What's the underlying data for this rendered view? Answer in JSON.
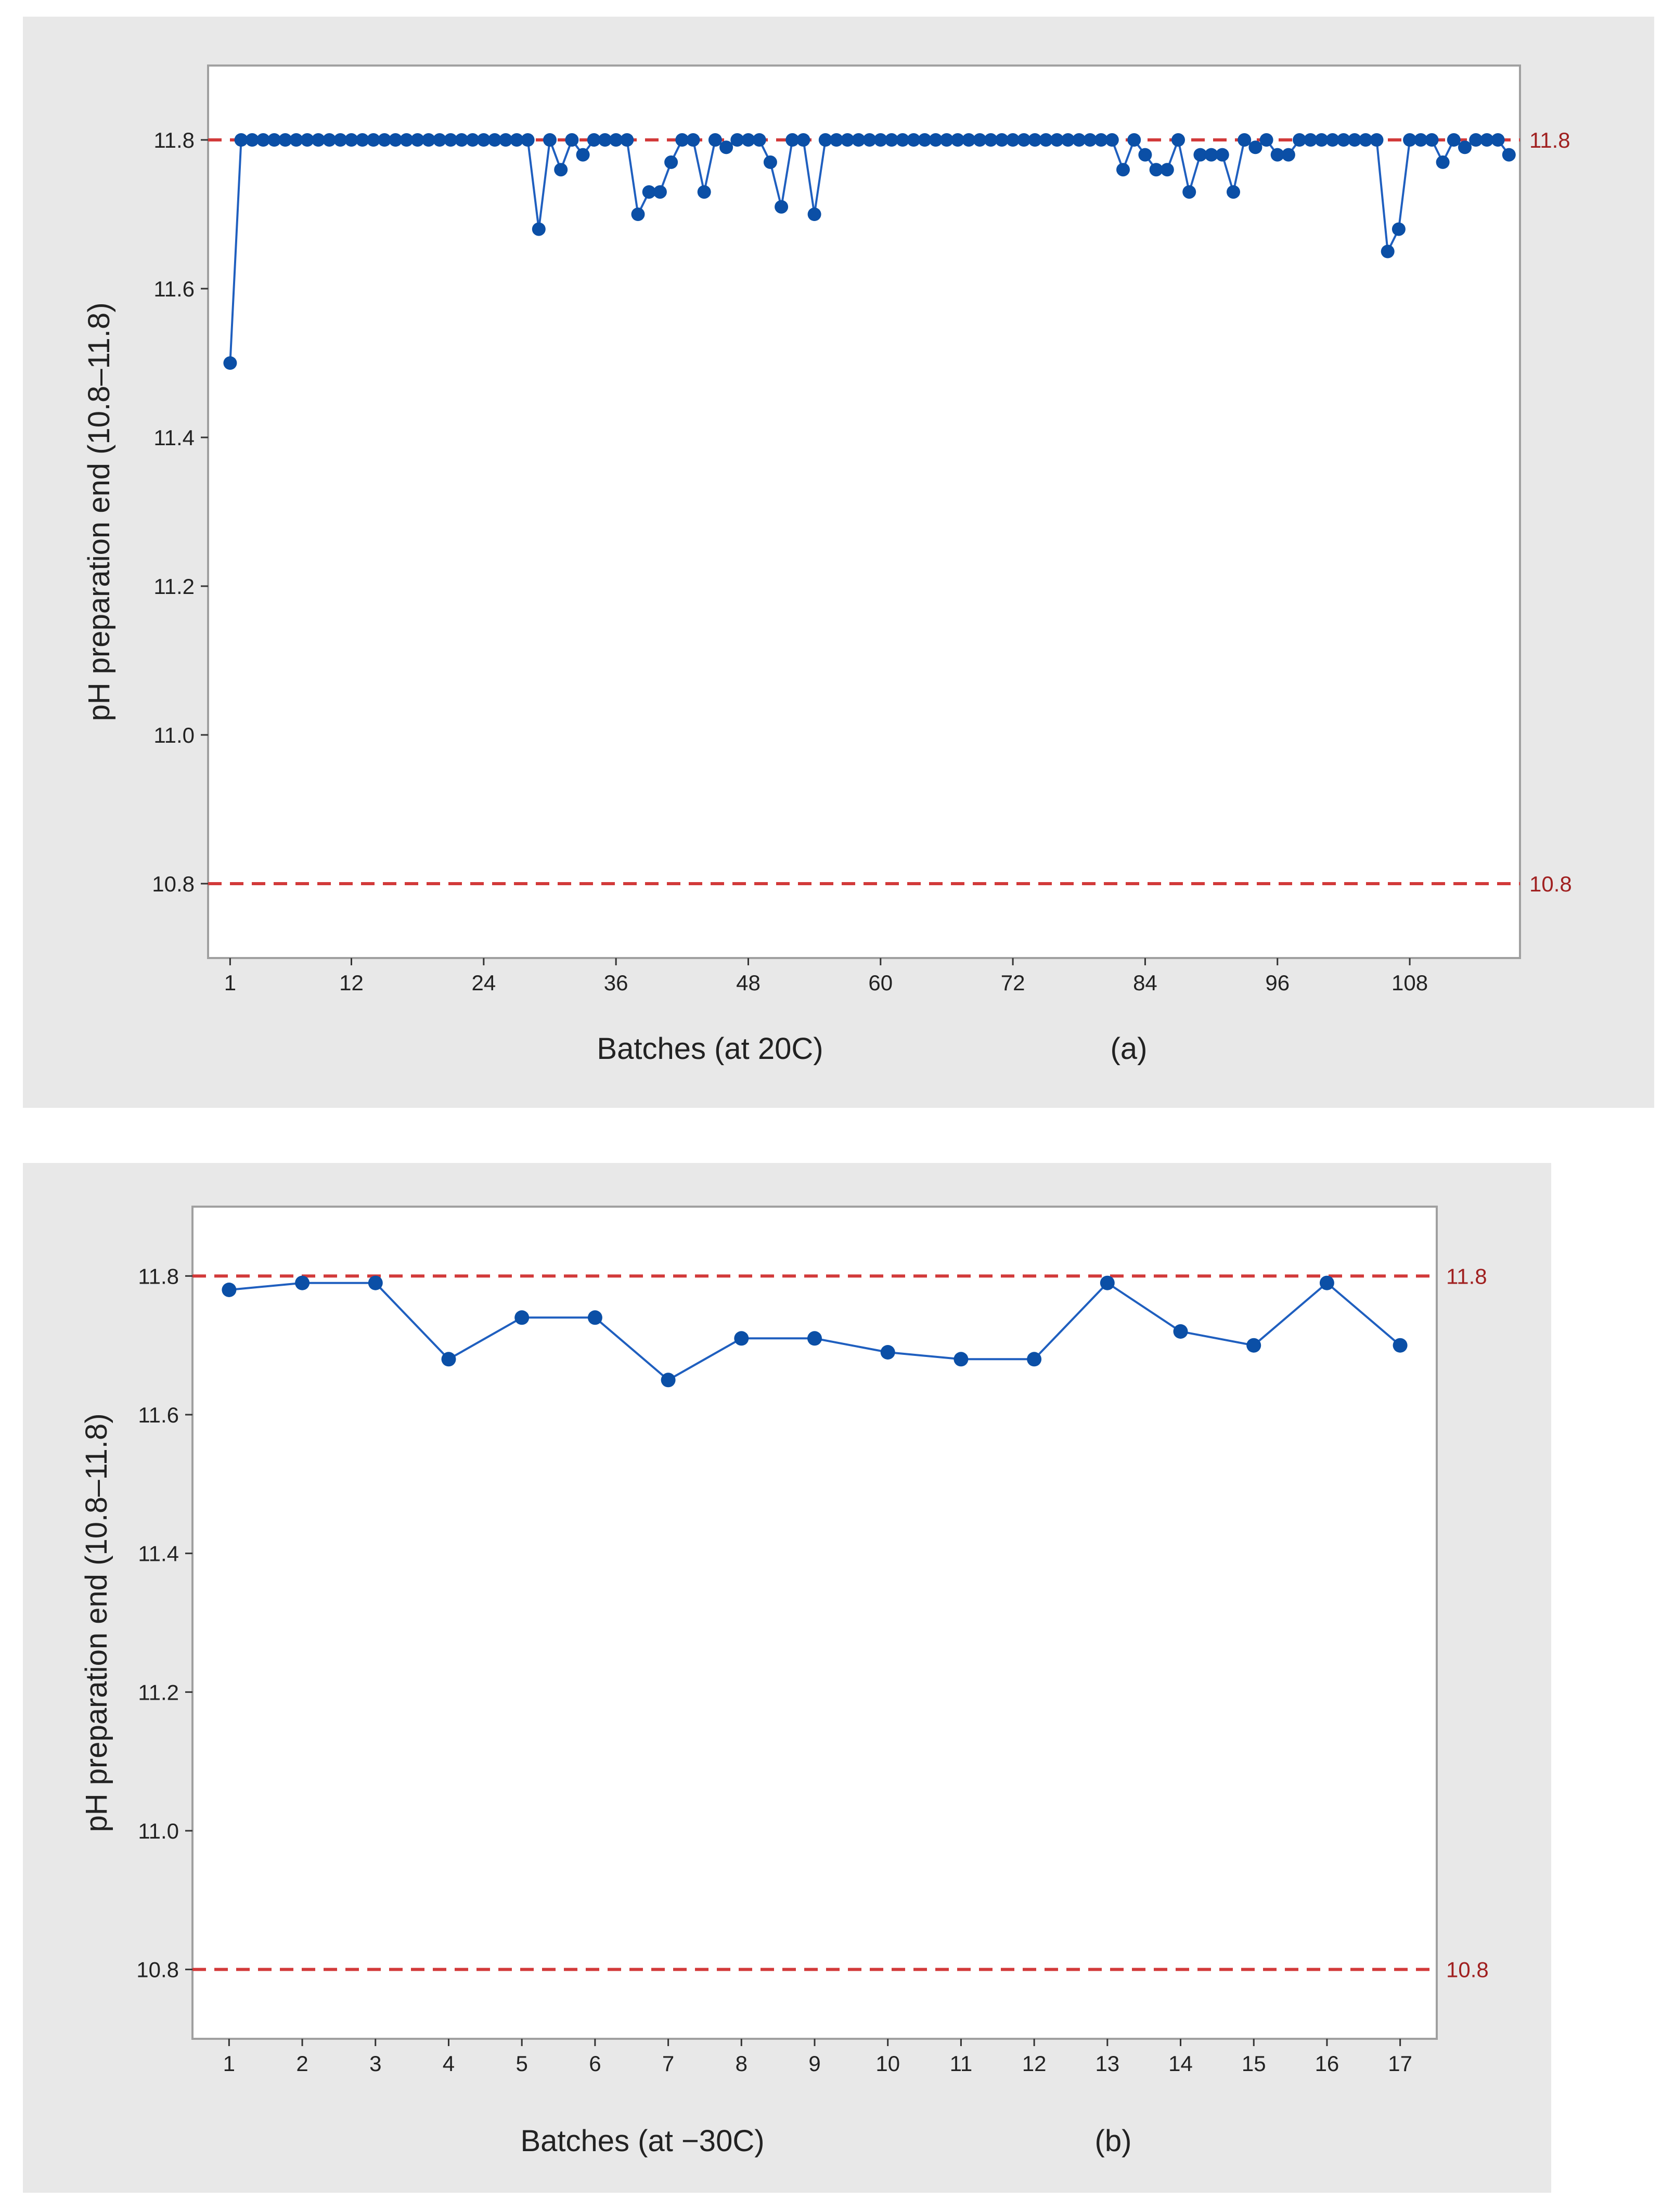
{
  "colors": {
    "panel": "#e8e8e8",
    "plot": "#ffffff",
    "series": "#1f5fbf",
    "marker": "#0b4fa6",
    "limit": "#d23a3a",
    "limit_text": "#a02020",
    "text": "#222222"
  },
  "chart_data": [
    {
      "type": "line",
      "ylabel": "pH preparation end (10.8–11.8)",
      "xlabel": "Batches (at 20C)",
      "panel_label": "(a)",
      "ylim": [
        10.7,
        11.9
      ],
      "yticks": [
        10.8,
        11.0,
        11.2,
        11.4,
        11.6,
        11.8
      ],
      "xlim": [
        -1,
        118
      ],
      "xticks": [
        1,
        12,
        24,
        36,
        48,
        60,
        72,
        84,
        96,
        108
      ],
      "limits": [
        {
          "value": 11.8,
          "label": "11.8"
        },
        {
          "value": 10.8,
          "label": "10.8"
        }
      ],
      "x_start": 1,
      "values": [
        11.5,
        11.8,
        11.8,
        11.8,
        11.8,
        11.8,
        11.8,
        11.8,
        11.8,
        11.8,
        11.8,
        11.8,
        11.8,
        11.8,
        11.8,
        11.8,
        11.8,
        11.8,
        11.8,
        11.8,
        11.8,
        11.8,
        11.8,
        11.8,
        11.8,
        11.8,
        11.8,
        11.8,
        11.68,
        11.8,
        11.76,
        11.8,
        11.78,
        11.8,
        11.8,
        11.8,
        11.8,
        11.7,
        11.73,
        11.73,
        11.77,
        11.8,
        11.8,
        11.73,
        11.8,
        11.79,
        11.8,
        11.8,
        11.8,
        11.77,
        11.71,
        11.8,
        11.8,
        11.7,
        11.8,
        11.8,
        11.8,
        11.8,
        11.8,
        11.8,
        11.8,
        11.8,
        11.8,
        11.8,
        11.8,
        11.8,
        11.8,
        11.8,
        11.8,
        11.8,
        11.8,
        11.8,
        11.8,
        11.8,
        11.8,
        11.8,
        11.8,
        11.8,
        11.8,
        11.8,
        11.8,
        11.76,
        11.8,
        11.78,
        11.76,
        11.76,
        11.8,
        11.73,
        11.78,
        11.78,
        11.78,
        11.73,
        11.8,
        11.79,
        11.8,
        11.78,
        11.78,
        11.8,
        11.8,
        11.8,
        11.8,
        11.8,
        11.8,
        11.8,
        11.8,
        11.65,
        11.68,
        11.8,
        11.8,
        11.8,
        11.77,
        11.8,
        11.79,
        11.8,
        11.8,
        11.8,
        11.78
      ]
    },
    {
      "type": "line",
      "ylabel": "pH preparation end (10.8–11.8)",
      "xlabel": "Batches (at −30C)",
      "panel_label": "(b)",
      "ylim": [
        10.7,
        11.9
      ],
      "yticks": [
        10.8,
        11.0,
        11.2,
        11.4,
        11.6,
        11.8
      ],
      "xlim": [
        0.5,
        17.5
      ],
      "xticks": [
        1,
        2,
        3,
        4,
        5,
        6,
        7,
        8,
        9,
        10,
        11,
        12,
        13,
        14,
        15,
        16,
        17
      ],
      "limits": [
        {
          "value": 11.8,
          "label": "11.8"
        },
        {
          "value": 10.8,
          "label": "10.8"
        }
      ],
      "x_start": 1,
      "values": [
        11.78,
        11.79,
        11.79,
        11.68,
        11.74,
        11.74,
        11.65,
        11.71,
        11.71,
        11.69,
        11.68,
        11.68,
        11.79,
        11.72,
        11.7,
        11.79,
        11.7
      ]
    }
  ]
}
